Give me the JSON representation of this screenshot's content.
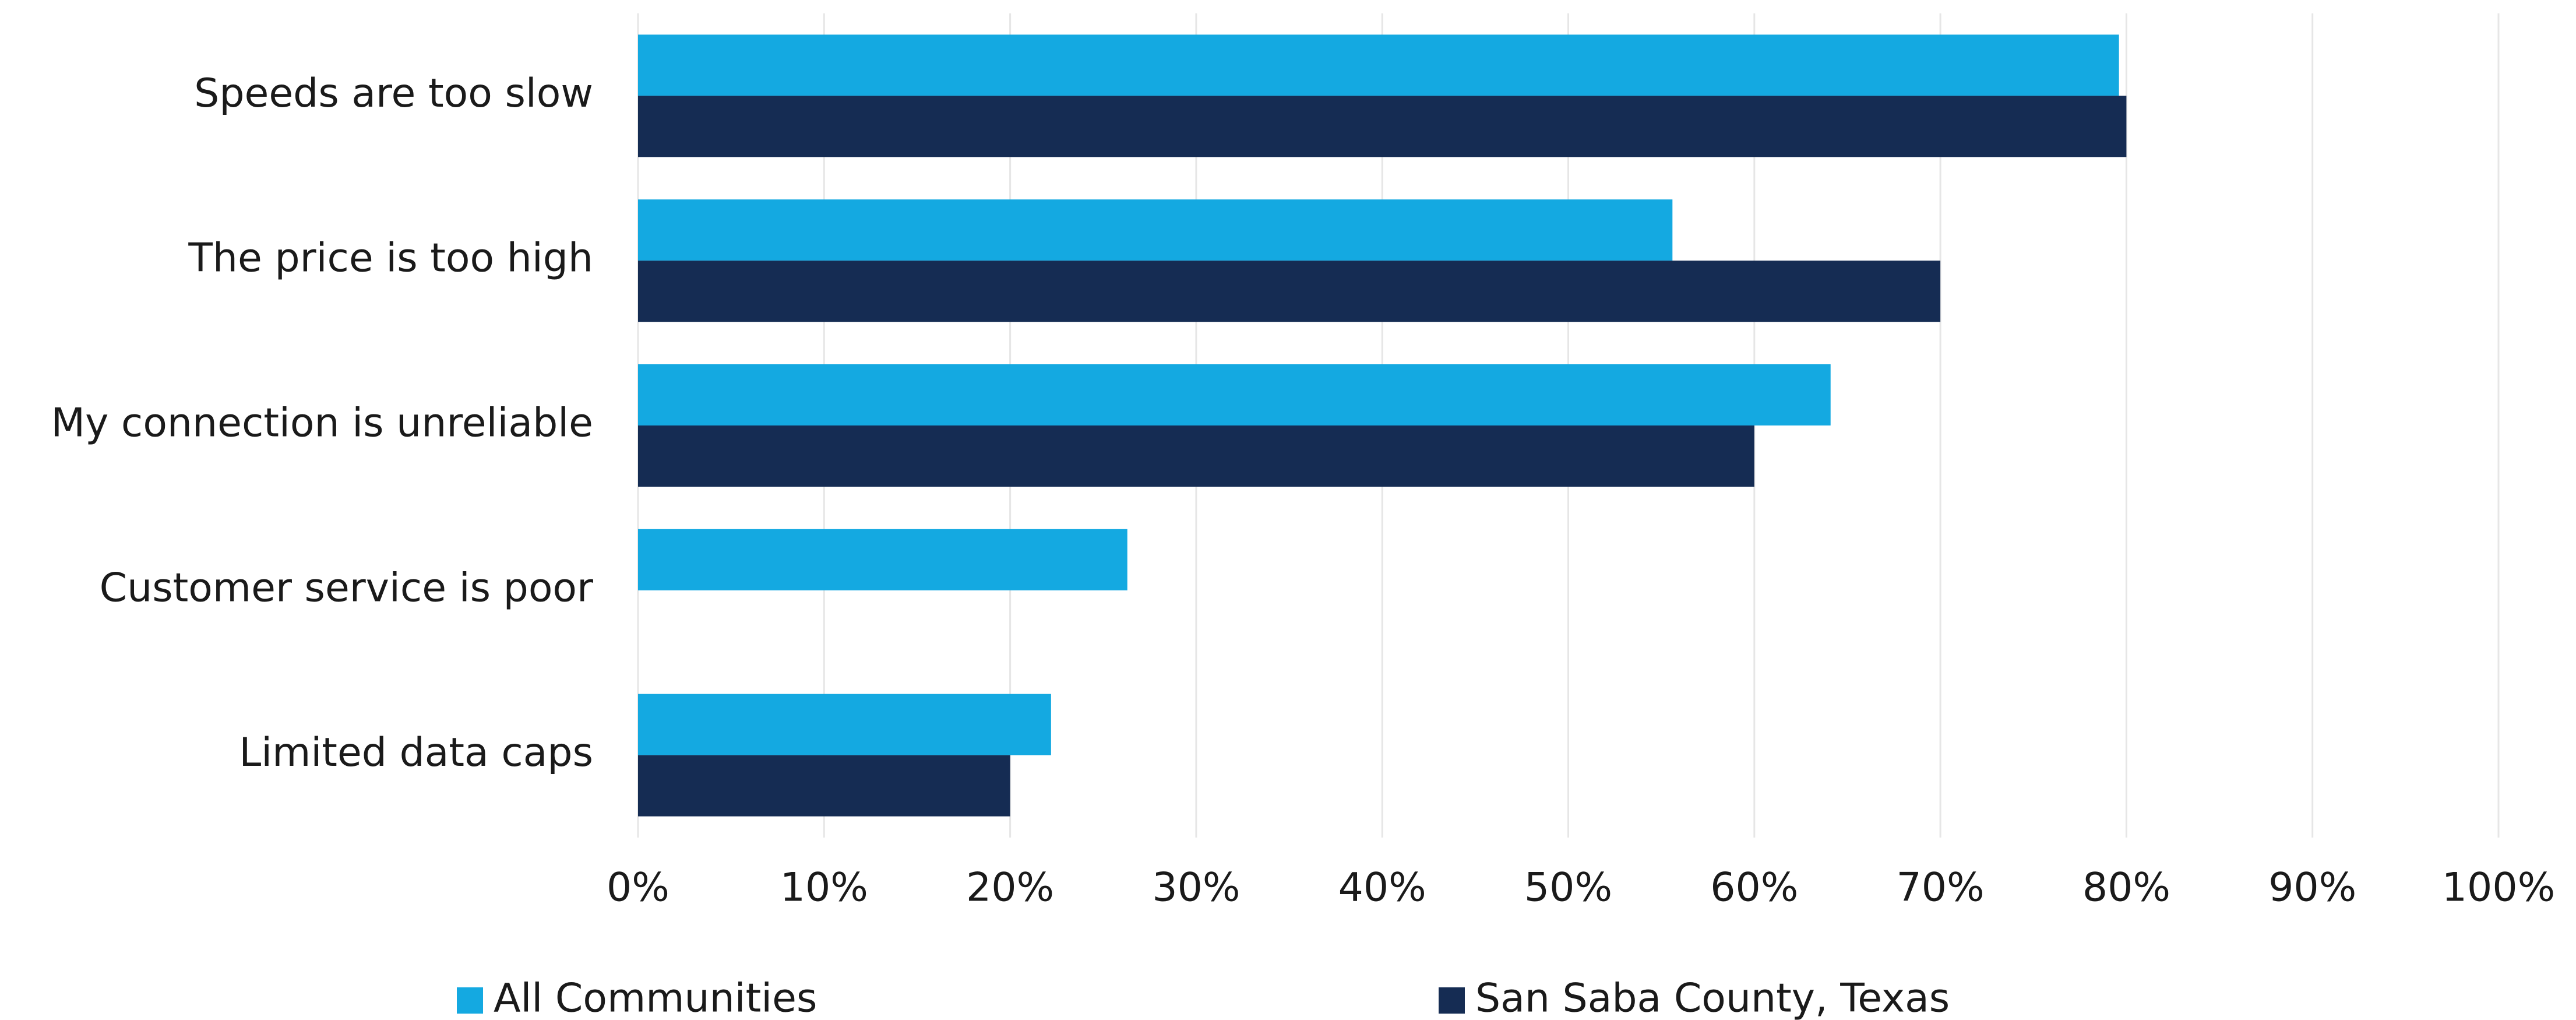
{
  "chart_data": {
    "type": "hbar",
    "categories": [
      "Speeds are too slow",
      "The price is too high",
      "My connection is unreliable",
      "Customer service is poor",
      "Limited data caps"
    ],
    "series": [
      {
        "name": "All Communities",
        "color": "#14a9e1",
        "values": [
          79.6,
          55.6,
          64.1,
          26.3,
          22.2
        ]
      },
      {
        "name": "San Saba County, Texas",
        "color": "#152c53",
        "values": [
          80,
          70,
          60,
          0,
          20
        ]
      }
    ],
    "xlim": [
      0,
      100
    ],
    "xticks": [
      {
        "value": 0,
        "label": "0%"
      },
      {
        "value": 10,
        "label": "10%"
      },
      {
        "value": 20,
        "label": "20%"
      },
      {
        "value": 30,
        "label": "30%"
      },
      {
        "value": 40,
        "label": "40%"
      },
      {
        "value": 50,
        "label": "50%"
      },
      {
        "value": 60,
        "label": "60%"
      },
      {
        "value": 70,
        "label": "70%"
      },
      {
        "value": 80,
        "label": "80%"
      },
      {
        "value": 90,
        "label": "90%"
      },
      {
        "value": 100,
        "label": "100%"
      }
    ],
    "grid": true,
    "legend": "bottom"
  }
}
